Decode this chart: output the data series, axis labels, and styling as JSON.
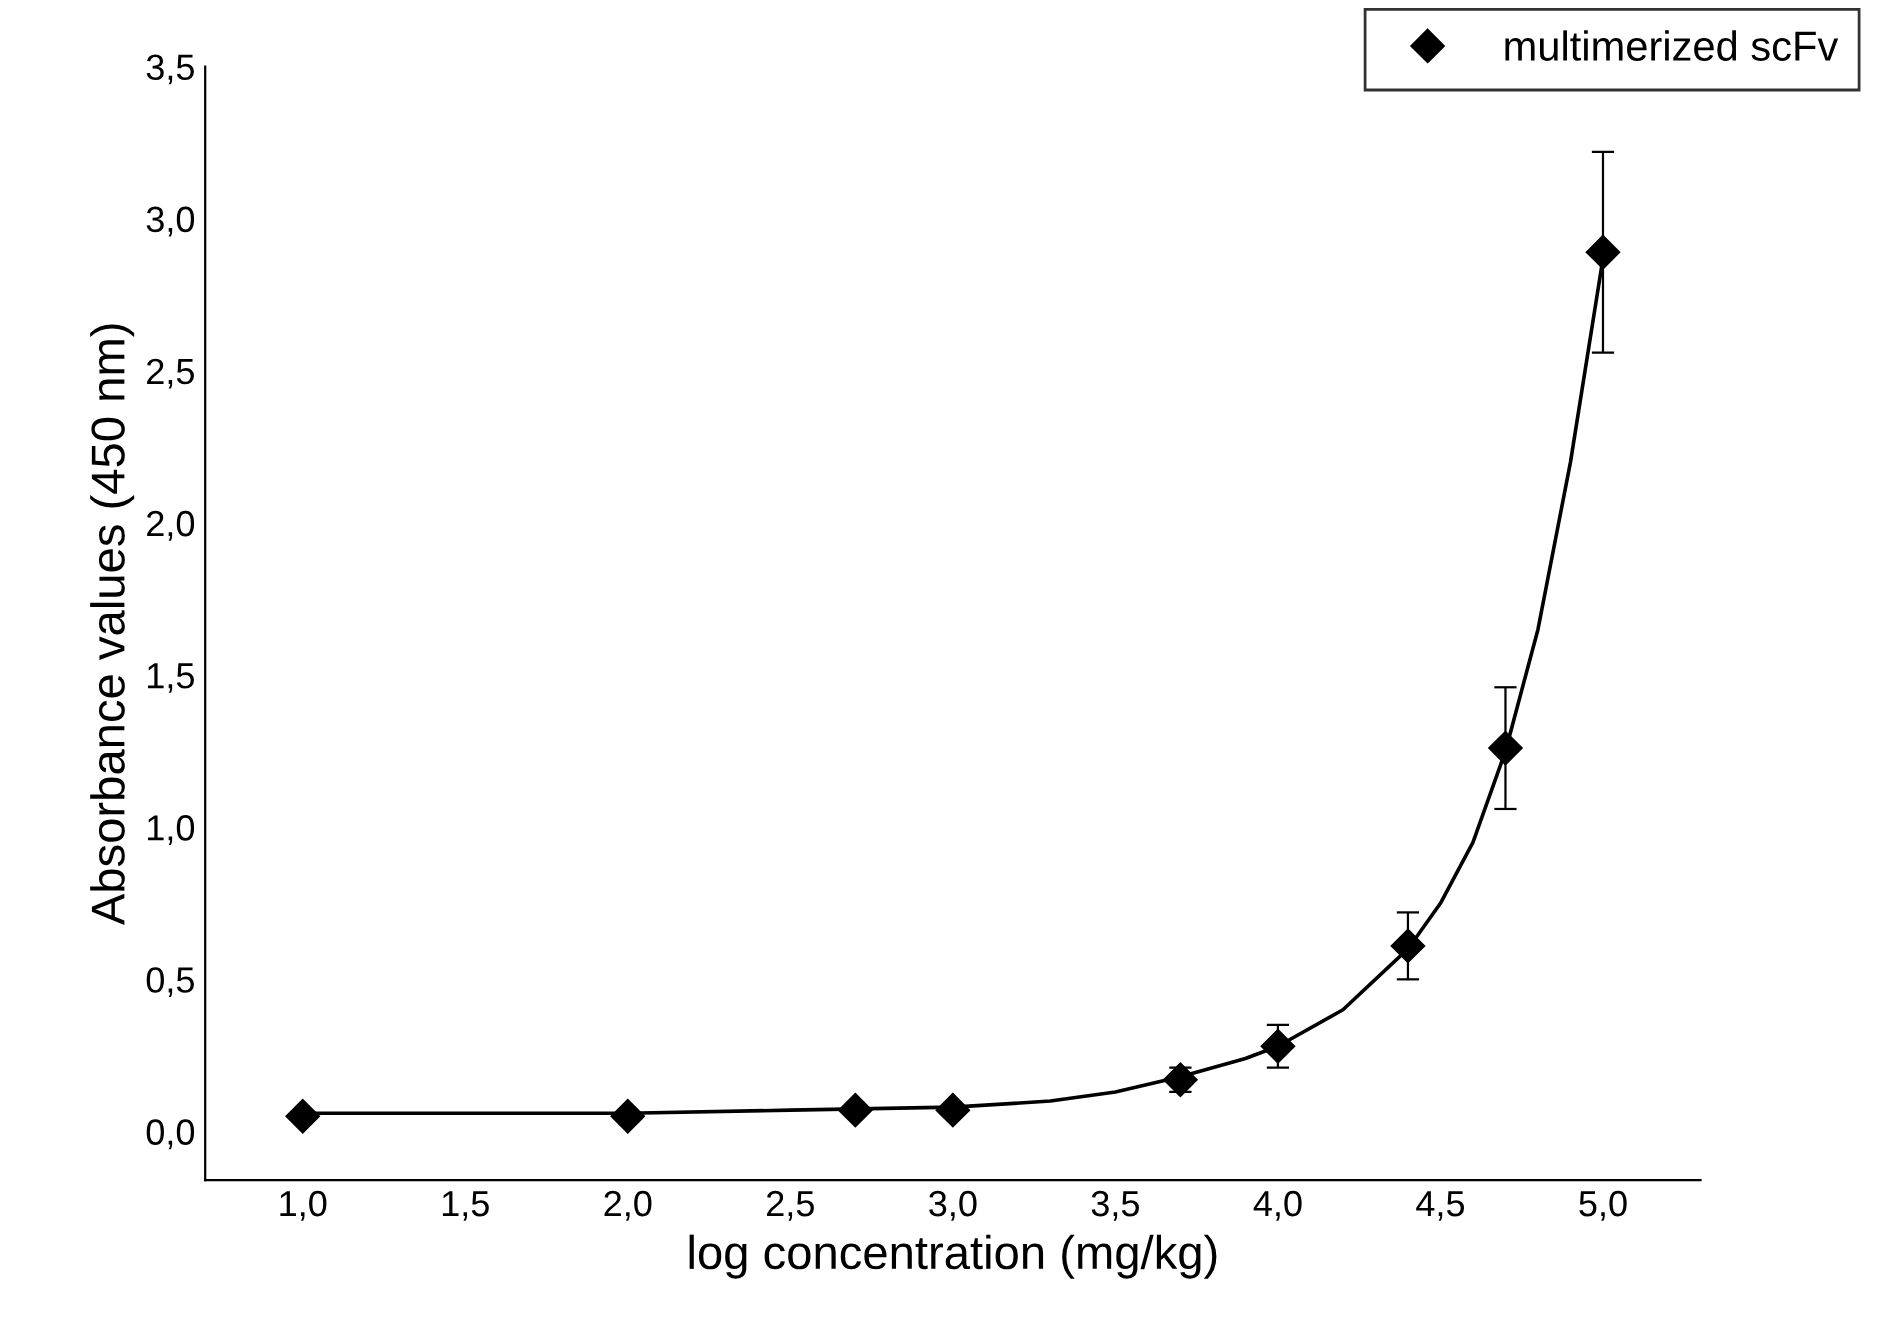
{
  "chart_data": {
    "type": "scatter",
    "xlabel": "log concentration (mg/kg)",
    "ylabel": "Absorbance values (450 nm)",
    "xlim": [
      0.7,
      5.3
    ],
    "ylim": [
      -0.16,
      3.5
    ],
    "xticks": [
      {
        "value": 1.0,
        "label": "1,0"
      },
      {
        "value": 1.5,
        "label": "1,5"
      },
      {
        "value": 2.0,
        "label": "2,0"
      },
      {
        "value": 2.5,
        "label": "2,5"
      },
      {
        "value": 3.0,
        "label": "3,0"
      },
      {
        "value": 3.5,
        "label": "3,5"
      },
      {
        "value": 4.0,
        "label": "4,0"
      },
      {
        "value": 4.5,
        "label": "4,5"
      },
      {
        "value": 5.0,
        "label": "5,0"
      }
    ],
    "yticks": [
      {
        "value": 0.0,
        "label": "0,0"
      },
      {
        "value": 0.5,
        "label": "0,5"
      },
      {
        "value": 1.0,
        "label": "1,0"
      },
      {
        "value": 1.5,
        "label": "1,5"
      },
      {
        "value": 2.0,
        "label": "2,0"
      },
      {
        "value": 2.5,
        "label": "2,5"
      },
      {
        "value": 3.0,
        "label": "3,0"
      },
      {
        "value": 3.5,
        "label": "3,5"
      }
    ],
    "grid": false,
    "legend": "top right",
    "marker": "diamond",
    "series": [
      {
        "name": "multimerized scFv",
        "color": "#000000",
        "x": [
          1.0,
          2.0,
          2.7,
          3.0,
          3.7,
          4.0,
          4.4,
          4.7,
          5.0
        ],
        "values": [
          0.05,
          0.05,
          0.07,
          0.07,
          0.17,
          0.28,
          0.61,
          1.26,
          2.89
        ],
        "errors": [
          null,
          null,
          null,
          null,
          0.04,
          0.07,
          0.11,
          0.2,
          0.33
        ]
      },
      {
        "type": "line",
        "color": "#000000",
        "line_style": "solid",
        "marker": "none",
        "x": [
          1.0,
          2.0,
          2.5,
          3.0,
          3.3,
          3.5,
          3.7,
          3.9,
          4.0,
          4.2,
          4.4,
          4.5,
          4.6,
          4.7,
          4.8,
          4.9,
          5.0
        ],
        "values": [
          0.06,
          0.06,
          0.07,
          0.08,
          0.1,
          0.13,
          0.18,
          0.24,
          0.28,
          0.4,
          0.6,
          0.75,
          0.95,
          1.25,
          1.65,
          2.2,
          2.87
        ]
      }
    ]
  }
}
